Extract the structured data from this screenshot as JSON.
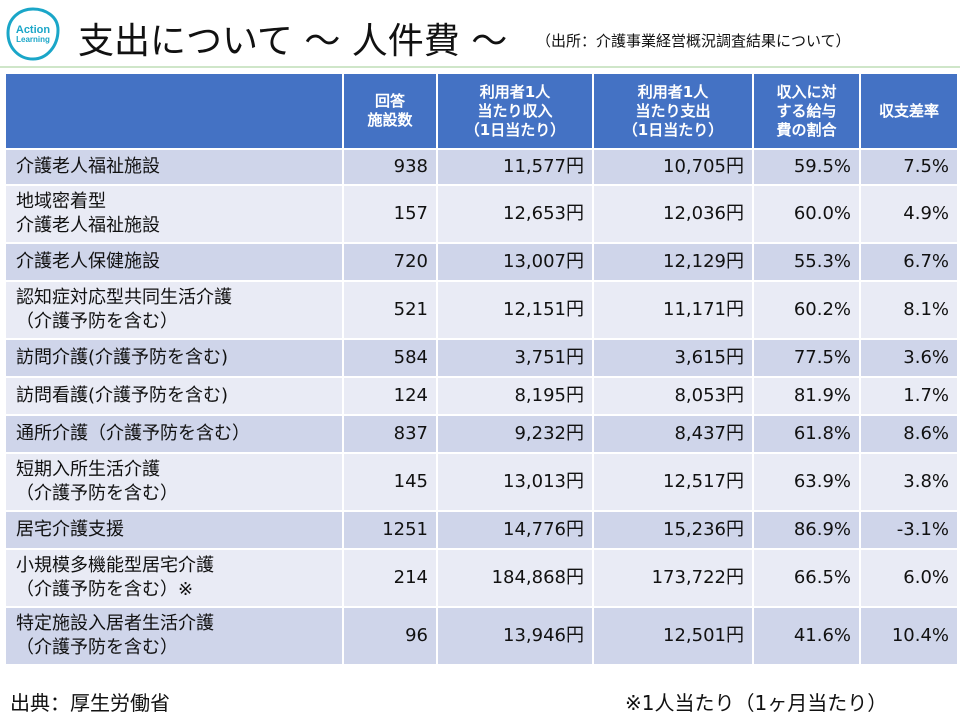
{
  "logo": {
    "line1": "Action",
    "line2": "Learning"
  },
  "title": "支出について ～ 人件費 ～",
  "title_source": "（出所：介護事業経営概況調査結果について）",
  "table": {
    "headers": [
      "",
      "回答\n施設数",
      "利用者1人\n当たり収入\n（1日当たり）",
      "利用者1人\n当たり支出\n（1日当たり）",
      "収入に対\nする給与\n費の割合",
      "収支差率"
    ],
    "rows": [
      {
        "name": "介護老人福祉施設",
        "count": "938",
        "income": "11,577円",
        "expense": "10,705円",
        "ratio": "59.5%",
        "margin": "7.5%"
      },
      {
        "name": "地域密着型\n介護老人福祉施設",
        "count": "157",
        "income": "12,653円",
        "expense": "12,036円",
        "ratio": "60.0%",
        "margin": "4.9%"
      },
      {
        "name": "介護老人保健施設",
        "count": "720",
        "income": "13,007円",
        "expense": "12,129円",
        "ratio": "55.3%",
        "margin": "6.7%"
      },
      {
        "name": "認知症対応型共同生活介護\n（介護予防を含む）",
        "count": "521",
        "income": "12,151円",
        "expense": "11,171円",
        "ratio": "60.2%",
        "margin": "8.1%"
      },
      {
        "name": "訪問介護(介護予防を含む)",
        "count": "584",
        "income": "3,751円",
        "expense": "3,615円",
        "ratio": "77.5%",
        "margin": "3.6%"
      },
      {
        "name": "訪問看護(介護予防を含む)",
        "count": "124",
        "income": "8,195円",
        "expense": "8,053円",
        "ratio": "81.9%",
        "margin": "1.7%"
      },
      {
        "name": "通所介護（介護予防を含む）",
        "count": "837",
        "income": "9,232円",
        "expense": "8,437円",
        "ratio": "61.8%",
        "margin": "8.6%"
      },
      {
        "name": "短期入所生活介護\n（介護予防を含む）",
        "count": "145",
        "income": "13,013円",
        "expense": "12,517円",
        "ratio": "63.9%",
        "margin": "3.8%"
      },
      {
        "name": "居宅介護支援",
        "count": "1251",
        "income": "14,776円",
        "expense": "15,236円",
        "ratio": "86.9%",
        "margin": "-3.1%"
      },
      {
        "name": "小規模多機能型居宅介護\n（介護予防を含む）※",
        "count": "214",
        "income": "184,868円",
        "expense": "173,722円",
        "ratio": "66.5%",
        "margin": "6.0%"
      },
      {
        "name": "特定施設入居者生活介護\n（介護予防を含む）",
        "count": "96",
        "income": "13,946円",
        "expense": "12,501円",
        "ratio": "41.6%",
        "margin": "10.4%"
      }
    ]
  },
  "footer": {
    "source": "出典：厚生労働省",
    "note": "※1人当たり（1ヶ月当たり）"
  },
  "colors": {
    "header_bg": "#4472c4",
    "row_odd": "#cfd5ea",
    "row_even": "#e9ebf5",
    "logo_accent": "#1aa6c8"
  }
}
